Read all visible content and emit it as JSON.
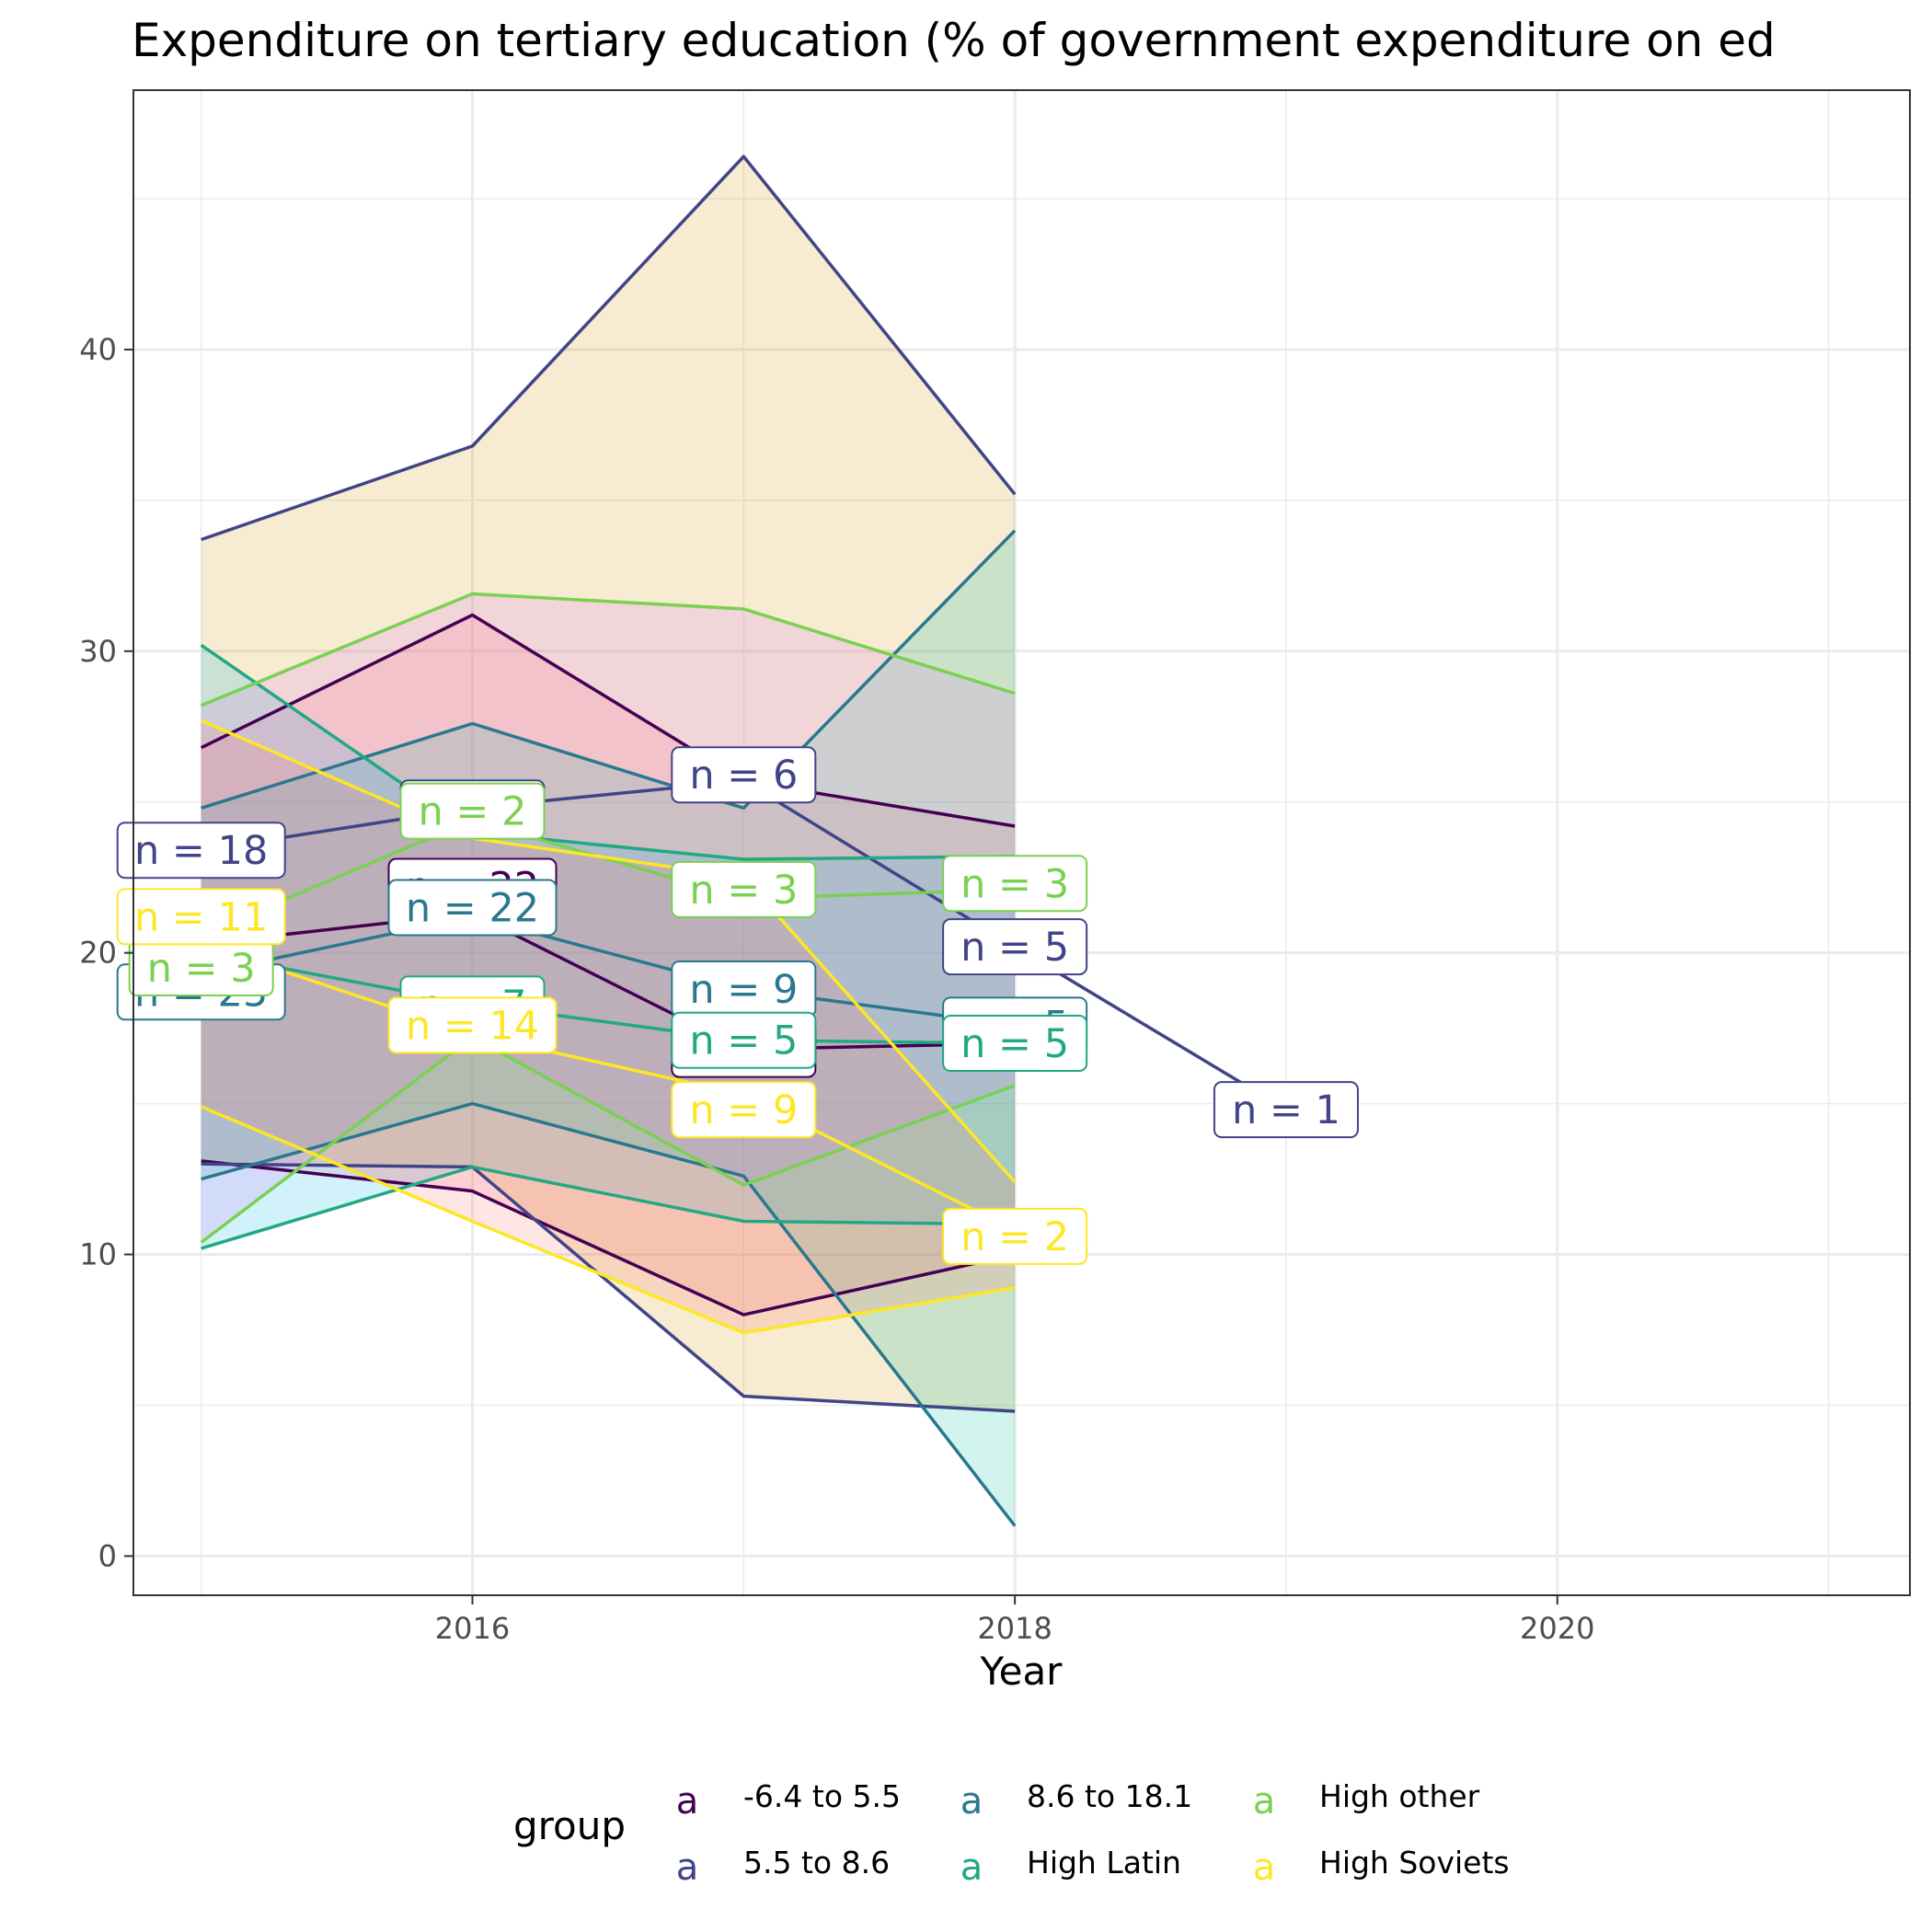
{
  "chart_data": {
    "type": "line",
    "title": "Expenditure on tertiary education (% of government expenditure on ed",
    "xlabel": "Year",
    "ylabel": "",
    "xlim": [
      2014.75,
      2021.3
    ],
    "ylim": [
      -1.3,
      48.6
    ],
    "x_ticks": [
      2016,
      2018,
      2020
    ],
    "x_tick_labels": [
      "2016",
      "2018",
      "2020"
    ],
    "y_ticks": [
      0,
      10,
      20,
      30,
      40
    ],
    "y_tick_labels": [
      "0",
      "10",
      "20",
      "30",
      "40"
    ],
    "grid": true,
    "legend": {
      "title": "group",
      "position": "bottom",
      "key_glyph": "a",
      "entries": [
        {
          "name": "-6.4 to 5.5",
          "color": "#440154"
        },
        {
          "name": "5.5 to 8.6",
          "color": "#414487"
        },
        {
          "name": "8.6 to 18.1",
          "color": "#2A788E"
        },
        {
          "name": "High Latin",
          "color": "#22A884"
        },
        {
          "name": "High other",
          "color": "#7AD151"
        },
        {
          "name": "High Soviets",
          "color": "#FDE725"
        }
      ]
    },
    "series": [
      {
        "name": "-6.4 to 5.5",
        "color": "#440154",
        "fill": "#FF6C91",
        "x": [
          2015,
          2016,
          2017,
          2018
        ],
        "median": [
          20.3,
          21.3,
          16.8,
          17.0
        ],
        "upper": [
          26.8,
          31.2,
          25.7,
          24.2
        ],
        "lower": [
          13.1,
          12.1,
          8.0,
          10.0
        ],
        "labels": [
          {
            "x": 2016,
            "y": 22.2,
            "text": "n = 22"
          },
          {
            "x": 2017,
            "y": 16.8,
            "text": "n = 5"
          }
        ]
      },
      {
        "name": "5.5 to 8.6",
        "color": "#414487",
        "fill": "#D39200",
        "x": [
          2015,
          2016,
          2017,
          2018,
          2019
        ],
        "median": [
          23.4,
          24.8,
          25.7,
          20.2,
          14.8
        ],
        "upper": [
          33.7,
          36.8,
          46.4,
          35.2,
          null
        ],
        "lower": [
          13.0,
          12.9,
          5.3,
          4.8,
          null
        ],
        "labels": [
          {
            "x": 2015,
            "y": 23.4,
            "text": "n = 18"
          },
          {
            "x": 2016,
            "y": 24.8,
            "text": "n = 2"
          },
          {
            "x": 2017,
            "y": 25.9,
            "text": "n = 6"
          },
          {
            "x": 2018,
            "y": 20.2,
            "text": "n = 5"
          },
          {
            "x": 2019,
            "y": 14.8,
            "text": "n = 1"
          }
        ]
      },
      {
        "name": "8.6 to 18.1",
        "color": "#2A788E",
        "fill": "#00C19F",
        "x": [
          2015,
          2016,
          2017,
          2018
        ],
        "median": [
          19.3,
          21.2,
          18.8,
          17.6
        ],
        "upper": [
          24.8,
          27.6,
          24.8,
          34.0
        ],
        "lower": [
          12.5,
          15.0,
          12.6,
          1.0
        ],
        "labels": [
          {
            "x": 2015,
            "y": 18.7,
            "text": "n = 25"
          },
          {
            "x": 2016,
            "y": 21.5,
            "text": "n = 22"
          },
          {
            "x": 2017,
            "y": 18.8,
            "text": "n = 9"
          },
          {
            "x": 2018,
            "y": 17.6,
            "text": "n = 5"
          }
        ]
      },
      {
        "name": "High Latin",
        "color": "#22A884",
        "fill": "#00B9E3",
        "x": [
          2015,
          2016,
          2017,
          2018
        ],
        "median": [
          20.0,
          18.3,
          17.1,
          17.0
        ],
        "upper": [
          30.2,
          24.0,
          23.1,
          23.2
        ],
        "lower": [
          10.2,
          12.9,
          11.1,
          11.0
        ],
        "labels": [
          {
            "x": 2016,
            "y": 18.3,
            "text": "n = 7"
          },
          {
            "x": 2017,
            "y": 17.1,
            "text": "n = 5"
          },
          {
            "x": 2018,
            "y": 17.0,
            "text": "n = 5"
          }
        ]
      },
      {
        "name": "High other",
        "color": "#7AD151",
        "fill": "#DB72FB",
        "x": [
          2015,
          2016,
          2017,
          2018
        ],
        "median": [
          20.6,
          24.4,
          21.8,
          22.1
        ],
        "upper": [
          28.2,
          31.9,
          31.4,
          28.6
        ],
        "lower": [
          10.4,
          17.2,
          12.3,
          15.6
        ],
        "labels": [
          {
            "x": 2015,
            "y": 19.5,
            "text": "n = 3"
          },
          {
            "x": 2016,
            "y": 24.7,
            "text": "n = 2"
          },
          {
            "x": 2017,
            "y": 22.1,
            "text": "n = 3"
          },
          {
            "x": 2018,
            "y": 22.3,
            "text": "n = 3"
          }
        ]
      },
      {
        "name": "High Soviets",
        "color": "#FDE725",
        "fill": "#F8766D",
        "x": [
          2015,
          2016,
          2017,
          2018
        ],
        "median": [
          20.3,
          17.3,
          15.3,
          10.8
        ],
        "upper": [
          27.7,
          23.8,
          22.5,
          12.4
        ],
        "lower": [
          14.9,
          11.1,
          7.4,
          8.9
        ],
        "labels": [
          {
            "x": 2015,
            "y": 21.2,
            "text": "n = 11"
          },
          {
            "x": 2016,
            "y": 17.6,
            "text": "n = 14"
          },
          {
            "x": 2017,
            "y": 14.8,
            "text": "n = 9"
          },
          {
            "x": 2018,
            "y": 10.6,
            "text": "n = 2"
          }
        ]
      }
    ]
  }
}
